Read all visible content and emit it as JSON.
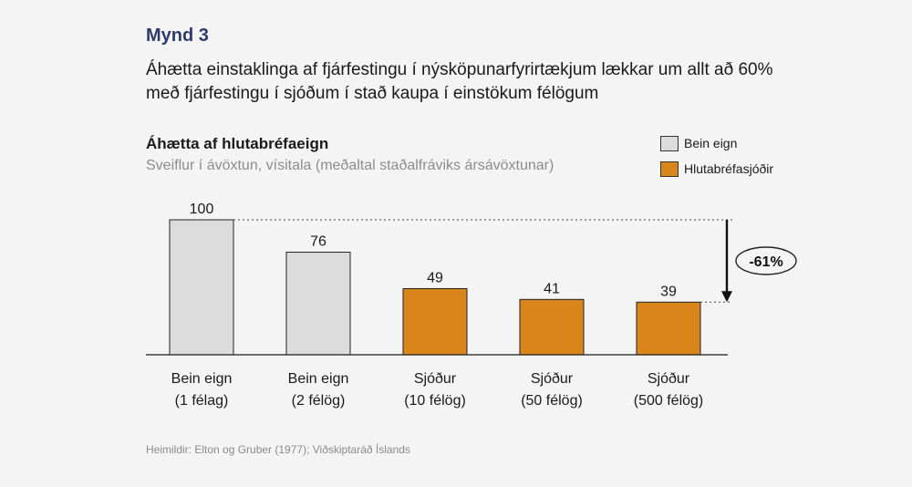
{
  "figure_label": "Mynd 3",
  "headline": "Áhætta einstaklinga af fjárfestingu í nýsköpunarfyrirtækjum lækkar um allt að 60% með fjárfestingu í sjóðum í stað kaupa í einstökum félögum",
  "source": "Heimildir: Elton og Gruber (1977); Viðskiptaráð Íslands",
  "colors": {
    "grey": "#dcdcdc",
    "orange": "#d8861c",
    "axis": "#1a1a1a"
  },
  "chart_data": {
    "type": "bar",
    "title": "Áhætta af hlutabréfaeign",
    "subtitle": "Sveiflur í ávöxtun, vísitala (meðaltal staðalfráviks ársávöxtunar)",
    "categories": [
      [
        "Bein eign",
        "(1 félag)"
      ],
      [
        "Bein eign",
        "(2 félög)"
      ],
      [
        "Sjóður",
        "(10 félög)"
      ],
      [
        "Sjóður",
        "(50 félög)"
      ],
      [
        "Sjóður",
        "(500 félög)"
      ]
    ],
    "values": [
      100,
      76,
      49,
      41,
      39
    ],
    "value_labels": [
      "100",
      "76",
      "49",
      "41",
      "39"
    ],
    "series_group": [
      0,
      0,
      1,
      1,
      1
    ],
    "legend": [
      {
        "label": "Bein eign",
        "color": "#dcdcdc"
      },
      {
        "label": "Hlutabréfasjóðir",
        "color": "#d8861c"
      }
    ],
    "legend_position": "top-right",
    "annotation": {
      "text": "-61%",
      "from_value": 100,
      "to_value": 39
    },
    "ylim": [
      0,
      100
    ],
    "grid": false
  }
}
